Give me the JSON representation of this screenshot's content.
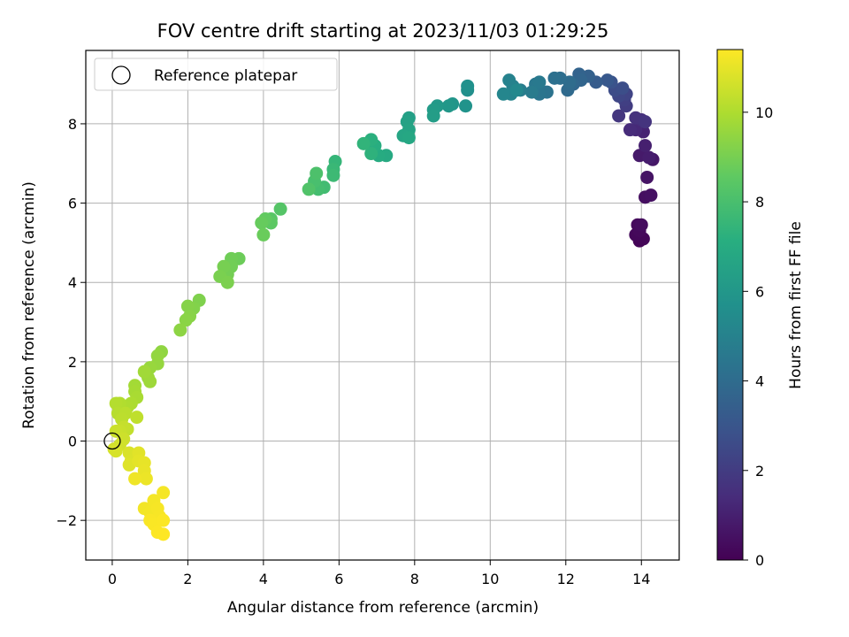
{
  "chart_data": {
    "type": "scatter",
    "title": "FOV centre drift starting at 2023/11/03 01:29:25",
    "xlabel": "Angular distance from reference (arcmin)",
    "ylabel": "Rotation from reference (arcmin)",
    "xlim": [
      -0.7,
      15.0
    ],
    "ylim": [
      -3.0,
      9.85
    ],
    "xticks": [
      0,
      2,
      4,
      6,
      8,
      10,
      12,
      14
    ],
    "yticks": [
      -2,
      0,
      2,
      4,
      6,
      8
    ],
    "grid": true,
    "legend": {
      "placement": "top-left",
      "entries": [
        "Reference platepar"
      ]
    },
    "reference_point": {
      "x": 0,
      "y": 0
    },
    "colorbar": {
      "label": "Hours from first FF file",
      "colormap": "viridis",
      "range": [
        0,
        11.4
      ],
      "ticks": [
        0,
        2,
        4,
        6,
        8,
        10
      ]
    },
    "points": [
      {
        "x": 13.95,
        "y": 5.05,
        "c": 0.1
      },
      {
        "x": 14.05,
        "y": 5.1,
        "c": 0.15
      },
      {
        "x": 13.85,
        "y": 5.2,
        "c": 0.2
      },
      {
        "x": 13.95,
        "y": 5.3,
        "c": 0.25
      },
      {
        "x": 13.9,
        "y": 5.45,
        "c": 0.3
      },
      {
        "x": 14.0,
        "y": 5.45,
        "c": 0.35
      },
      {
        "x": 14.1,
        "y": 6.15,
        "c": 0.45
      },
      {
        "x": 14.25,
        "y": 6.2,
        "c": 0.5
      },
      {
        "x": 14.15,
        "y": 6.65,
        "c": 0.6
      },
      {
        "x": 14.3,
        "y": 7.1,
        "c": 0.7
      },
      {
        "x": 13.95,
        "y": 7.2,
        "c": 0.8
      },
      {
        "x": 14.2,
        "y": 7.15,
        "c": 0.9
      },
      {
        "x": 14.1,
        "y": 7.45,
        "c": 1.0
      },
      {
        "x": 14.05,
        "y": 7.8,
        "c": 1.1
      },
      {
        "x": 13.85,
        "y": 7.85,
        "c": 1.3
      },
      {
        "x": 13.7,
        "y": 7.85,
        "c": 1.4
      },
      {
        "x": 14.0,
        "y": 8.1,
        "c": 1.5
      },
      {
        "x": 13.85,
        "y": 8.15,
        "c": 1.6
      },
      {
        "x": 14.1,
        "y": 8.05,
        "c": 1.7
      },
      {
        "x": 13.4,
        "y": 8.2,
        "c": 1.8
      },
      {
        "x": 13.6,
        "y": 8.45,
        "c": 2.0
      },
      {
        "x": 13.55,
        "y": 8.6,
        "c": 2.1
      },
      {
        "x": 13.6,
        "y": 8.75,
        "c": 2.3
      },
      {
        "x": 13.4,
        "y": 8.7,
        "c": 2.4
      },
      {
        "x": 13.3,
        "y": 8.85,
        "c": 2.6
      },
      {
        "x": 13.5,
        "y": 8.9,
        "c": 2.7
      },
      {
        "x": 13.2,
        "y": 9.05,
        "c": 2.9
      },
      {
        "x": 13.1,
        "y": 9.1,
        "c": 3.1
      },
      {
        "x": 12.8,
        "y": 9.05,
        "c": 3.3
      },
      {
        "x": 12.6,
        "y": 9.2,
        "c": 3.5
      },
      {
        "x": 12.35,
        "y": 9.25,
        "c": 3.6
      },
      {
        "x": 12.4,
        "y": 9.1,
        "c": 3.7
      },
      {
        "x": 12.2,
        "y": 9.0,
        "c": 3.8
      },
      {
        "x": 12.05,
        "y": 8.85,
        "c": 3.9
      },
      {
        "x": 12.1,
        "y": 9.05,
        "c": 4.0
      },
      {
        "x": 11.85,
        "y": 9.15,
        "c": 4.1
      },
      {
        "x": 11.7,
        "y": 9.15,
        "c": 4.2
      },
      {
        "x": 11.5,
        "y": 8.8,
        "c": 4.3
      },
      {
        "x": 11.3,
        "y": 8.75,
        "c": 4.4
      },
      {
        "x": 11.2,
        "y": 9.0,
        "c": 4.5
      },
      {
        "x": 11.3,
        "y": 9.05,
        "c": 4.6
      },
      {
        "x": 11.1,
        "y": 8.8,
        "c": 4.7
      },
      {
        "x": 10.8,
        "y": 8.85,
        "c": 4.8
      },
      {
        "x": 10.6,
        "y": 8.95,
        "c": 4.9
      },
      {
        "x": 10.5,
        "y": 9.1,
        "c": 5.0
      },
      {
        "x": 10.55,
        "y": 8.75,
        "c": 5.1
      },
      {
        "x": 10.35,
        "y": 8.75,
        "c": 5.2
      },
      {
        "x": 10.7,
        "y": 8.85,
        "c": 5.3
      },
      {
        "x": 9.4,
        "y": 8.85,
        "c": 5.6
      },
      {
        "x": 9.4,
        "y": 8.95,
        "c": 5.7
      },
      {
        "x": 9.35,
        "y": 8.45,
        "c": 5.8
      },
      {
        "x": 9.0,
        "y": 8.5,
        "c": 5.9
      },
      {
        "x": 8.9,
        "y": 8.45,
        "c": 6.0
      },
      {
        "x": 8.6,
        "y": 8.45,
        "c": 6.1
      },
      {
        "x": 8.5,
        "y": 8.35,
        "c": 6.2
      },
      {
        "x": 8.5,
        "y": 8.2,
        "c": 6.3
      },
      {
        "x": 7.85,
        "y": 8.15,
        "c": 6.4
      },
      {
        "x": 7.8,
        "y": 8.05,
        "c": 6.5
      },
      {
        "x": 7.85,
        "y": 7.85,
        "c": 6.6
      },
      {
        "x": 7.7,
        "y": 7.7,
        "c": 6.7
      },
      {
        "x": 7.85,
        "y": 7.65,
        "c": 6.8
      },
      {
        "x": 7.25,
        "y": 7.2,
        "c": 6.9
      },
      {
        "x": 7.05,
        "y": 7.2,
        "c": 7.0
      },
      {
        "x": 6.95,
        "y": 7.45,
        "c": 7.1
      },
      {
        "x": 6.85,
        "y": 7.6,
        "c": 7.2
      },
      {
        "x": 6.85,
        "y": 7.25,
        "c": 7.3
      },
      {
        "x": 6.65,
        "y": 7.5,
        "c": 7.4
      },
      {
        "x": 5.9,
        "y": 7.05,
        "c": 7.5
      },
      {
        "x": 5.85,
        "y": 6.85,
        "c": 7.6
      },
      {
        "x": 5.85,
        "y": 6.7,
        "c": 7.7
      },
      {
        "x": 5.6,
        "y": 6.4,
        "c": 7.8
      },
      {
        "x": 5.45,
        "y": 6.35,
        "c": 7.9
      },
      {
        "x": 5.35,
        "y": 6.55,
        "c": 8.0
      },
      {
        "x": 5.4,
        "y": 6.75,
        "c": 8.1
      },
      {
        "x": 5.2,
        "y": 6.35,
        "c": 8.2
      },
      {
        "x": 4.45,
        "y": 5.85,
        "c": 8.3
      },
      {
        "x": 4.2,
        "y": 5.6,
        "c": 8.4
      },
      {
        "x": 4.2,
        "y": 5.5,
        "c": 8.5
      },
      {
        "x": 4.05,
        "y": 5.6,
        "c": 8.6
      },
      {
        "x": 3.95,
        "y": 5.5,
        "c": 8.7
      },
      {
        "x": 4.0,
        "y": 5.2,
        "c": 8.75
      },
      {
        "x": 3.35,
        "y": 4.6,
        "c": 8.8
      },
      {
        "x": 3.15,
        "y": 4.6,
        "c": 8.85
      },
      {
        "x": 3.15,
        "y": 4.4,
        "c": 8.9
      },
      {
        "x": 3.05,
        "y": 4.2,
        "c": 8.95
      },
      {
        "x": 2.95,
        "y": 4.4,
        "c": 9.0
      },
      {
        "x": 2.85,
        "y": 4.15,
        "c": 9.05
      },
      {
        "x": 3.05,
        "y": 4.0,
        "c": 9.1
      },
      {
        "x": 2.3,
        "y": 3.55,
        "c": 9.15
      },
      {
        "x": 2.15,
        "y": 3.35,
        "c": 9.2
      },
      {
        "x": 2.0,
        "y": 3.4,
        "c": 9.25
      },
      {
        "x": 2.05,
        "y": 3.15,
        "c": 9.3
      },
      {
        "x": 1.95,
        "y": 3.05,
        "c": 9.35
      },
      {
        "x": 1.8,
        "y": 2.8,
        "c": 9.4
      },
      {
        "x": 1.3,
        "y": 2.25,
        "c": 9.45
      },
      {
        "x": 1.2,
        "y": 2.15,
        "c": 9.5
      },
      {
        "x": 1.2,
        "y": 1.95,
        "c": 9.55
      },
      {
        "x": 1.0,
        "y": 1.85,
        "c": 9.6
      },
      {
        "x": 0.95,
        "y": 1.6,
        "c": 9.65
      },
      {
        "x": 1.0,
        "y": 1.5,
        "c": 9.7
      },
      {
        "x": 0.85,
        "y": 1.75,
        "c": 9.75
      },
      {
        "x": 0.6,
        "y": 1.4,
        "c": 9.8
      },
      {
        "x": 0.6,
        "y": 1.25,
        "c": 9.85
      },
      {
        "x": 0.65,
        "y": 1.1,
        "c": 9.9
      },
      {
        "x": 0.5,
        "y": 0.95,
        "c": 9.95
      },
      {
        "x": 0.4,
        "y": 0.85,
        "c": 10.0
      },
      {
        "x": 0.2,
        "y": 0.95,
        "c": 10.05
      },
      {
        "x": 0.1,
        "y": 0.95,
        "c": 10.1
      },
      {
        "x": 0.15,
        "y": 0.7,
        "c": 10.15
      },
      {
        "x": 0.35,
        "y": 0.7,
        "c": 10.2
      },
      {
        "x": 0.25,
        "y": 0.55,
        "c": 10.25
      },
      {
        "x": 0.65,
        "y": 0.6,
        "c": 10.3
      },
      {
        "x": 0.4,
        "y": 0.3,
        "c": 10.35
      },
      {
        "x": 0.3,
        "y": 0.35,
        "c": 10.4
      },
      {
        "x": 0.2,
        "y": 0.25,
        "c": 10.45
      },
      {
        "x": 0.1,
        "y": 0.25,
        "c": 10.5
      },
      {
        "x": 0.3,
        "y": 0.05,
        "c": 10.55
      },
      {
        "x": 0.2,
        "y": -0.1,
        "c": 10.6
      },
      {
        "x": 0.05,
        "y": -0.2,
        "c": 10.65
      },
      {
        "x": 0.1,
        "y": -0.25,
        "c": 10.7
      },
      {
        "x": 0.45,
        "y": -0.3,
        "c": 10.75
      },
      {
        "x": 0.5,
        "y": -0.5,
        "c": 10.8
      },
      {
        "x": 0.45,
        "y": -0.6,
        "c": 10.85
      },
      {
        "x": 0.7,
        "y": -0.3,
        "c": 10.9
      },
      {
        "x": 0.7,
        "y": -0.5,
        "c": 10.95
      },
      {
        "x": 0.85,
        "y": -0.55,
        "c": 11.0
      },
      {
        "x": 0.85,
        "y": -0.75,
        "c": 11.05
      },
      {
        "x": 0.9,
        "y": -0.95,
        "c": 11.1
      },
      {
        "x": 0.6,
        "y": -0.95,
        "c": 11.15
      },
      {
        "x": 0.85,
        "y": -1.7,
        "c": 11.2
      },
      {
        "x": 1.0,
        "y": -1.8,
        "c": 11.22
      },
      {
        "x": 1.1,
        "y": -1.5,
        "c": 11.24
      },
      {
        "x": 1.35,
        "y": -1.3,
        "c": 11.26
      },
      {
        "x": 1.2,
        "y": -1.7,
        "c": 11.28
      },
      {
        "x": 1.25,
        "y": -1.9,
        "c": 11.3
      },
      {
        "x": 1.0,
        "y": -2.0,
        "c": 11.32
      },
      {
        "x": 1.1,
        "y": -2.1,
        "c": 11.34
      },
      {
        "x": 1.35,
        "y": -2.0,
        "c": 11.36
      },
      {
        "x": 1.2,
        "y": -2.3,
        "c": 11.38
      },
      {
        "x": 1.35,
        "y": -2.35,
        "c": 11.4
      }
    ]
  }
}
